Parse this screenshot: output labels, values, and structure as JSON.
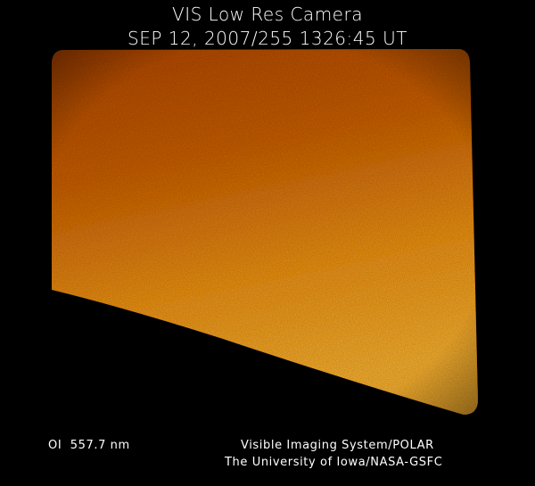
{
  "title": "VIS Low Res Camera",
  "timestamp": "SEP 12, 2007/255 1326:45 UT",
  "filter": "OI  557.7 nm",
  "credit_line1": "Visible Imaging System/POLAR",
  "credit_line2": "The University of Iowa/NASA-GSFC",
  "colors": {
    "background": "#000000",
    "image_dark": "#b8500a",
    "image_bright": "#f5a626"
  }
}
